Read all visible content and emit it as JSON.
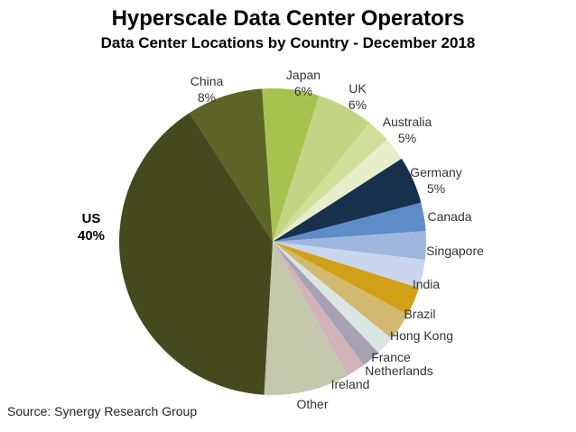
{
  "title": "Hyperscale Data Center Operators",
  "subtitle": "Data Center Locations by Country - December 2018",
  "source": "Source: Synergy Research Group",
  "chart_data": {
    "type": "pie",
    "title": "Hyperscale Data Center Operators",
    "subtitle": "Data Center Locations by Country - December 2018",
    "unit": "percent",
    "legend": "none",
    "start_angle_deg": -4,
    "clockwise": true,
    "series": [
      {
        "name": "Japan",
        "value": 6,
        "label": "Japan",
        "pct_label": "6%",
        "show_pct": true,
        "color": "#a8c24f"
      },
      {
        "name": "UK",
        "value": 6,
        "label": "UK",
        "pct_label": "6%",
        "show_pct": true,
        "color": "#c3d582"
      },
      {
        "name": "Australia",
        "value": 5,
        "label": "Australia",
        "pct_label": "5%",
        "show_pct": true,
        "color": "#d2df9b",
        "color2": "#e8edca"
      },
      {
        "name": "Germany",
        "value": 5,
        "label": "Germany",
        "pct_label": "5%",
        "show_pct": true,
        "color": "#16304e"
      },
      {
        "name": "Canada",
        "value": 3,
        "label": "Canada",
        "show_pct": false,
        "color": "#5e8cc8"
      },
      {
        "name": "Singapore",
        "value": 3,
        "label": "Singapore",
        "show_pct": false,
        "color": "#a0b7dd"
      },
      {
        "name": "India",
        "value": 3,
        "label": "India",
        "show_pct": false,
        "color": "#cad6ed"
      },
      {
        "name": "Brazil",
        "value": 3,
        "label": "Brazil",
        "show_pct": false,
        "color": "#d2a017"
      },
      {
        "name": "Hong Kong",
        "value": 3,
        "label": "Hong Kong",
        "show_pct": false,
        "color": "#d2b96f"
      },
      {
        "name": "France",
        "value": 2,
        "label": "France",
        "show_pct": false,
        "color": "#d9e6e4"
      },
      {
        "name": "Netherlands",
        "value": 2,
        "label": "Netherlands",
        "show_pct": false,
        "color": "#a8a1b4"
      },
      {
        "name": "Ireland",
        "value": 2,
        "label": "Ireland",
        "show_pct": false,
        "color": "#d2b3ba"
      },
      {
        "name": "Other",
        "value": 9,
        "label": "Other",
        "show_pct": false,
        "color": "#c3c7ac"
      },
      {
        "name": "US",
        "value": 40,
        "label": "US",
        "pct_label": "40%",
        "show_pct": true,
        "bold": true,
        "color": "#454a1e"
      },
      {
        "name": "China",
        "value": 8,
        "label": "China",
        "pct_label": "8%",
        "show_pct": true,
        "color": "#5c6525"
      }
    ]
  }
}
